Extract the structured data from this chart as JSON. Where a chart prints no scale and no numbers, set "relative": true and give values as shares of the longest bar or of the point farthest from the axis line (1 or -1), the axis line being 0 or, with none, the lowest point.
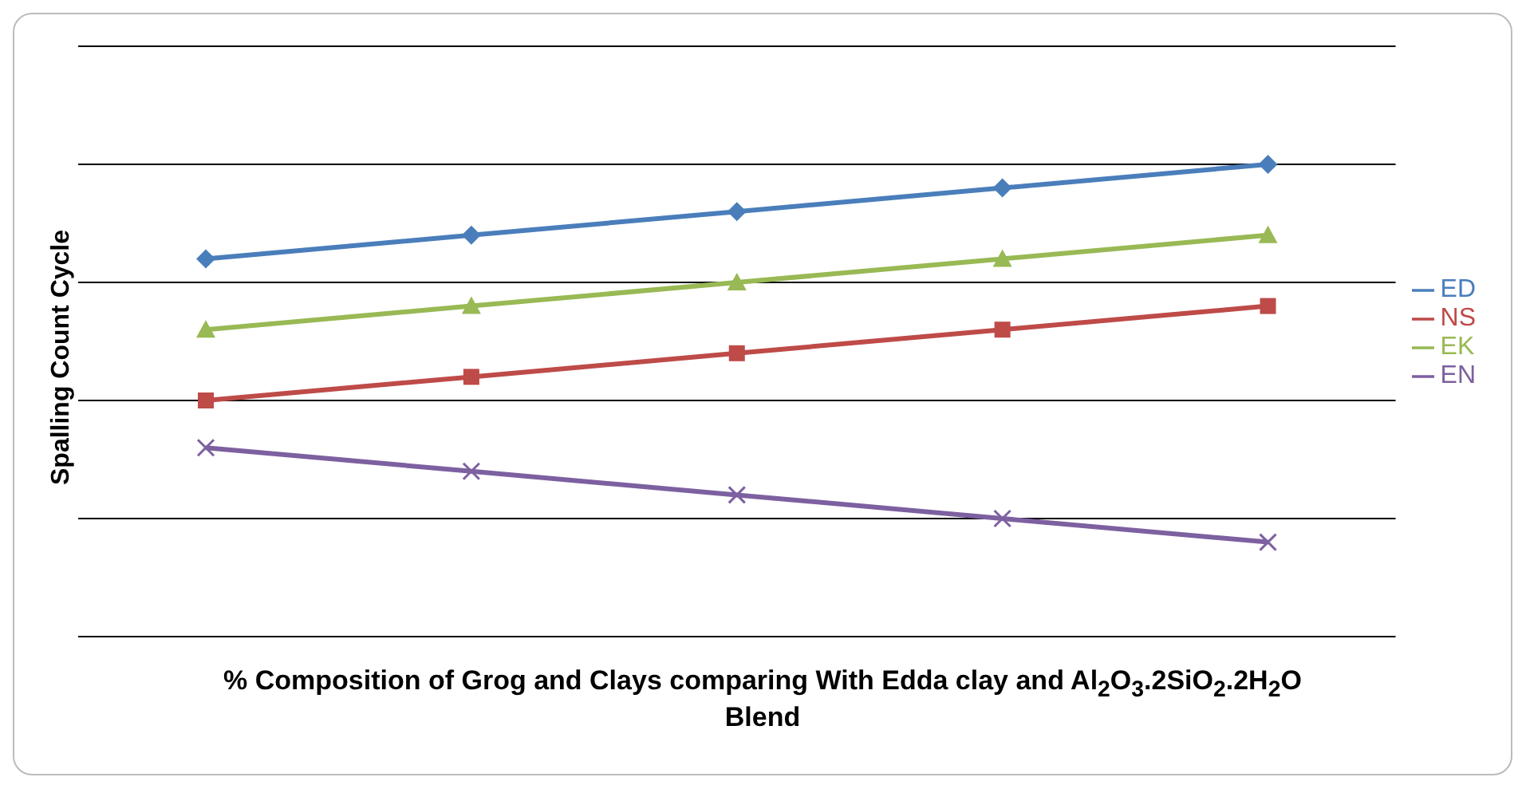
{
  "chart_data": {
    "type": "line",
    "relative": true,
    "xlabel": "% Composition of Grog and Clays comparing With Edda clay and Al$_{2}$O$_{3}$.2SiO$_{2}$.2H$_{2}$O Blend",
    "ylabel": "Spalling Count Cycle",
    "categories": [
      null,
      null,
      null,
      null,
      null
    ],
    "grid": "y",
    "legend": "right",
    "series": [
      {
        "name": "ED",
        "color": "#4a7ebb",
        "marker": "diamond",
        "values": [
          0.8,
          0.85,
          0.9,
          0.95,
          1.0
        ]
      },
      {
        "name": "NS",
        "color": "#be4b48",
        "marker": "square",
        "values": [
          0.5,
          0.55,
          0.6,
          0.65,
          0.7
        ]
      },
      {
        "name": "EK",
        "color": "#98b954",
        "marker": "triangle",
        "values": [
          0.65,
          0.7,
          0.75,
          0.8,
          0.85
        ]
      },
      {
        "name": "EN",
        "color": "#7d60a0",
        "marker": "cross",
        "values": [
          0.4,
          0.35,
          0.3,
          0.25,
          0.2
        ]
      }
    ]
  }
}
